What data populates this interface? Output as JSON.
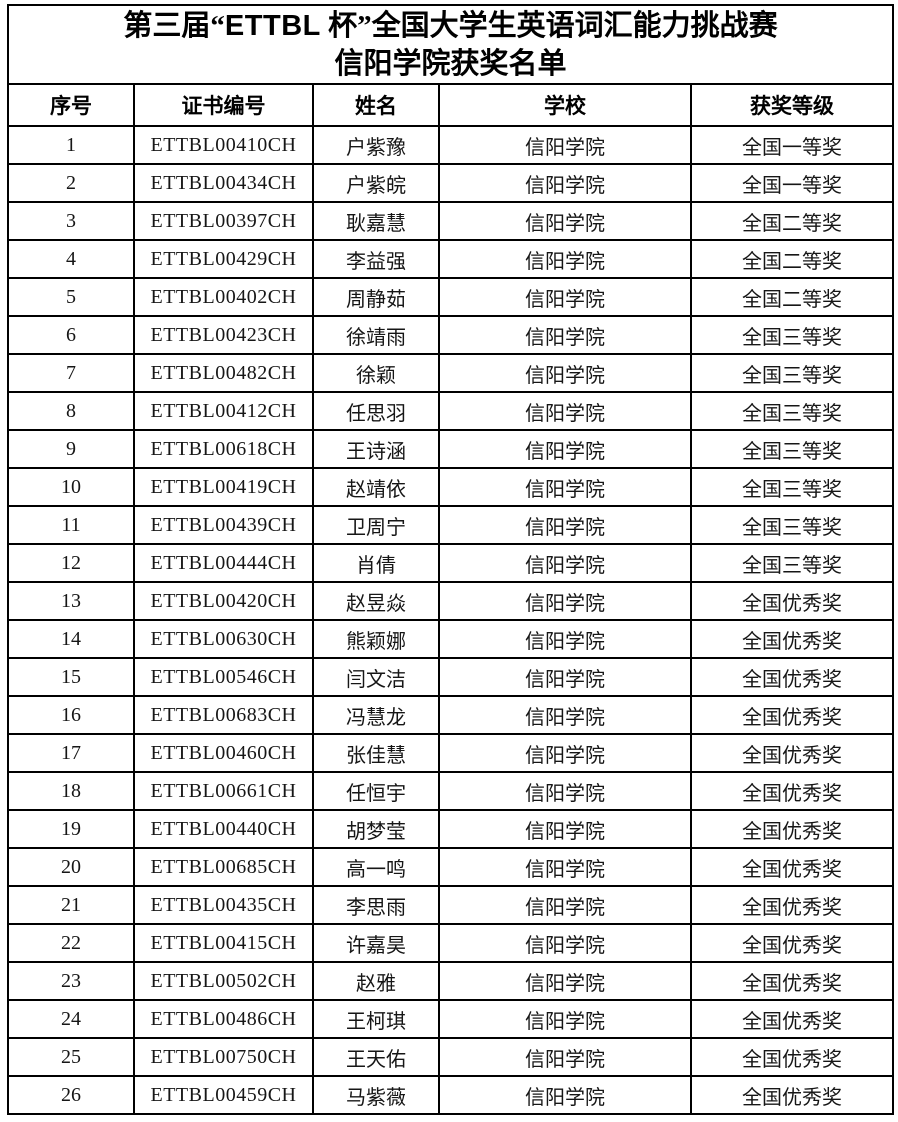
{
  "page": {
    "background_color": "#ffffff",
    "border_color": "#000000",
    "text_color": "#111111"
  },
  "title": {
    "prefix": "第三届“",
    "brand": "ETTBL",
    "suffix": " 杯”全国大学生英语词汇能力挑战赛",
    "line2": "信阳学院获奖名单"
  },
  "table": {
    "headers": [
      "序号",
      "证书编号",
      "姓名",
      "学校",
      "获奖等级"
    ],
    "rows": [
      {
        "no": "1",
        "cert": "ETTBL00410CH",
        "name": "户紫豫",
        "school": "信阳学院",
        "award": "全国一等奖"
      },
      {
        "no": "2",
        "cert": "ETTBL00434CH",
        "name": "户紫皖",
        "school": "信阳学院",
        "award": "全国一等奖"
      },
      {
        "no": "3",
        "cert": "ETTBL00397CH",
        "name": "耿嘉慧",
        "school": "信阳学院",
        "award": "全国二等奖"
      },
      {
        "no": "4",
        "cert": "ETTBL00429CH",
        "name": "李益强",
        "school": "信阳学院",
        "award": "全国二等奖"
      },
      {
        "no": "5",
        "cert": "ETTBL00402CH",
        "name": "周静茹",
        "school": "信阳学院",
        "award": "全国二等奖"
      },
      {
        "no": "6",
        "cert": "ETTBL00423CH",
        "name": "徐靖雨",
        "school": "信阳学院",
        "award": "全国三等奖"
      },
      {
        "no": "7",
        "cert": "ETTBL00482CH",
        "name": "徐颖",
        "school": "信阳学院",
        "award": "全国三等奖"
      },
      {
        "no": "8",
        "cert": "ETTBL00412CH",
        "name": "任思羽",
        "school": "信阳学院",
        "award": "全国三等奖"
      },
      {
        "no": "9",
        "cert": "ETTBL00618CH",
        "name": "王诗涵",
        "school": "信阳学院",
        "award": "全国三等奖"
      },
      {
        "no": "10",
        "cert": "ETTBL00419CH",
        "name": "赵靖依",
        "school": "信阳学院",
        "award": "全国三等奖"
      },
      {
        "no": "11",
        "cert": "ETTBL00439CH",
        "name": "卫周宁",
        "school": "信阳学院",
        "award": "全国三等奖"
      },
      {
        "no": "12",
        "cert": "ETTBL00444CH",
        "name": "肖倩",
        "school": "信阳学院",
        "award": "全国三等奖"
      },
      {
        "no": "13",
        "cert": "ETTBL00420CH",
        "name": "赵昱焱",
        "school": "信阳学院",
        "award": "全国优秀奖"
      },
      {
        "no": "14",
        "cert": "ETTBL00630CH",
        "name": "熊颖娜",
        "school": "信阳学院",
        "award": "全国优秀奖"
      },
      {
        "no": "15",
        "cert": "ETTBL00546CH",
        "name": "闫文洁",
        "school": "信阳学院",
        "award": "全国优秀奖"
      },
      {
        "no": "16",
        "cert": "ETTBL00683CH",
        "name": "冯慧龙",
        "school": "信阳学院",
        "award": "全国优秀奖"
      },
      {
        "no": "17",
        "cert": "ETTBL00460CH",
        "name": "张佳慧",
        "school": "信阳学院",
        "award": "全国优秀奖"
      },
      {
        "no": "18",
        "cert": "ETTBL00661CH",
        "name": "任恒宇",
        "school": "信阳学院",
        "award": "全国优秀奖"
      },
      {
        "no": "19",
        "cert": "ETTBL00440CH",
        "name": "胡梦莹",
        "school": "信阳学院",
        "award": "全国优秀奖"
      },
      {
        "no": "20",
        "cert": "ETTBL00685CH",
        "name": "高一鸣",
        "school": "信阳学院",
        "award": "全国优秀奖"
      },
      {
        "no": "21",
        "cert": "ETTBL00435CH",
        "name": "李思雨",
        "school": "信阳学院",
        "award": "全国优秀奖"
      },
      {
        "no": "22",
        "cert": "ETTBL00415CH",
        "name": "许嘉昊",
        "school": "信阳学院",
        "award": "全国优秀奖"
      },
      {
        "no": "23",
        "cert": "ETTBL00502CH",
        "name": "赵雅",
        "school": "信阳学院",
        "award": "全国优秀奖"
      },
      {
        "no": "24",
        "cert": "ETTBL00486CH",
        "name": "王柯琪",
        "school": "信阳学院",
        "award": "全国优秀奖"
      },
      {
        "no": "25",
        "cert": "ETTBL00750CH",
        "name": "王天佑",
        "school": "信阳学院",
        "award": "全国优秀奖"
      },
      {
        "no": "26",
        "cert": "ETTBL00459CH",
        "name": "马紫薇",
        "school": "信阳学院",
        "award": "全国优秀奖"
      }
    ]
  }
}
